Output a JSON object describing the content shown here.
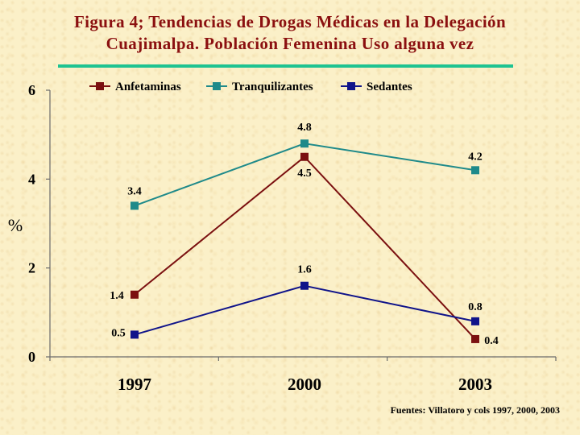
{
  "title_line1": "Figura 4; Tendencias de Drogas Médicas en  la Delegación",
  "title_line2": "Cuajimalpa. Población Femenina Uso alguna vez",
  "source": "Fuentes: Villatoro y cols 1997, 2000, 2003",
  "colors": {
    "title": "#8b1010",
    "rule": "#1ec391"
  },
  "chart_data": {
    "type": "line",
    "ylabel": "%",
    "ylim": [
      0,
      6
    ],
    "yticks": [
      0,
      2,
      4,
      6
    ],
    "categories": [
      "1997",
      "2000",
      "2003"
    ],
    "legend_position": "top",
    "series": [
      {
        "name": "Anfetaminas",
        "color": "#7b1010",
        "values": [
          1.4,
          4.5,
          0.4
        ],
        "labels": [
          "1.4",
          "4.5",
          "0.4"
        ]
      },
      {
        "name": "Tranquilizantes",
        "color": "#1f8a8a",
        "values": [
          3.4,
          4.8,
          4.2
        ],
        "labels": [
          "3.4",
          "4.8",
          "4.2"
        ]
      },
      {
        "name": "Sedantes",
        "color": "#10148a",
        "values": [
          0.5,
          1.6,
          0.8
        ],
        "labels": [
          "0.5",
          "1.6",
          "0.8"
        ]
      }
    ]
  }
}
